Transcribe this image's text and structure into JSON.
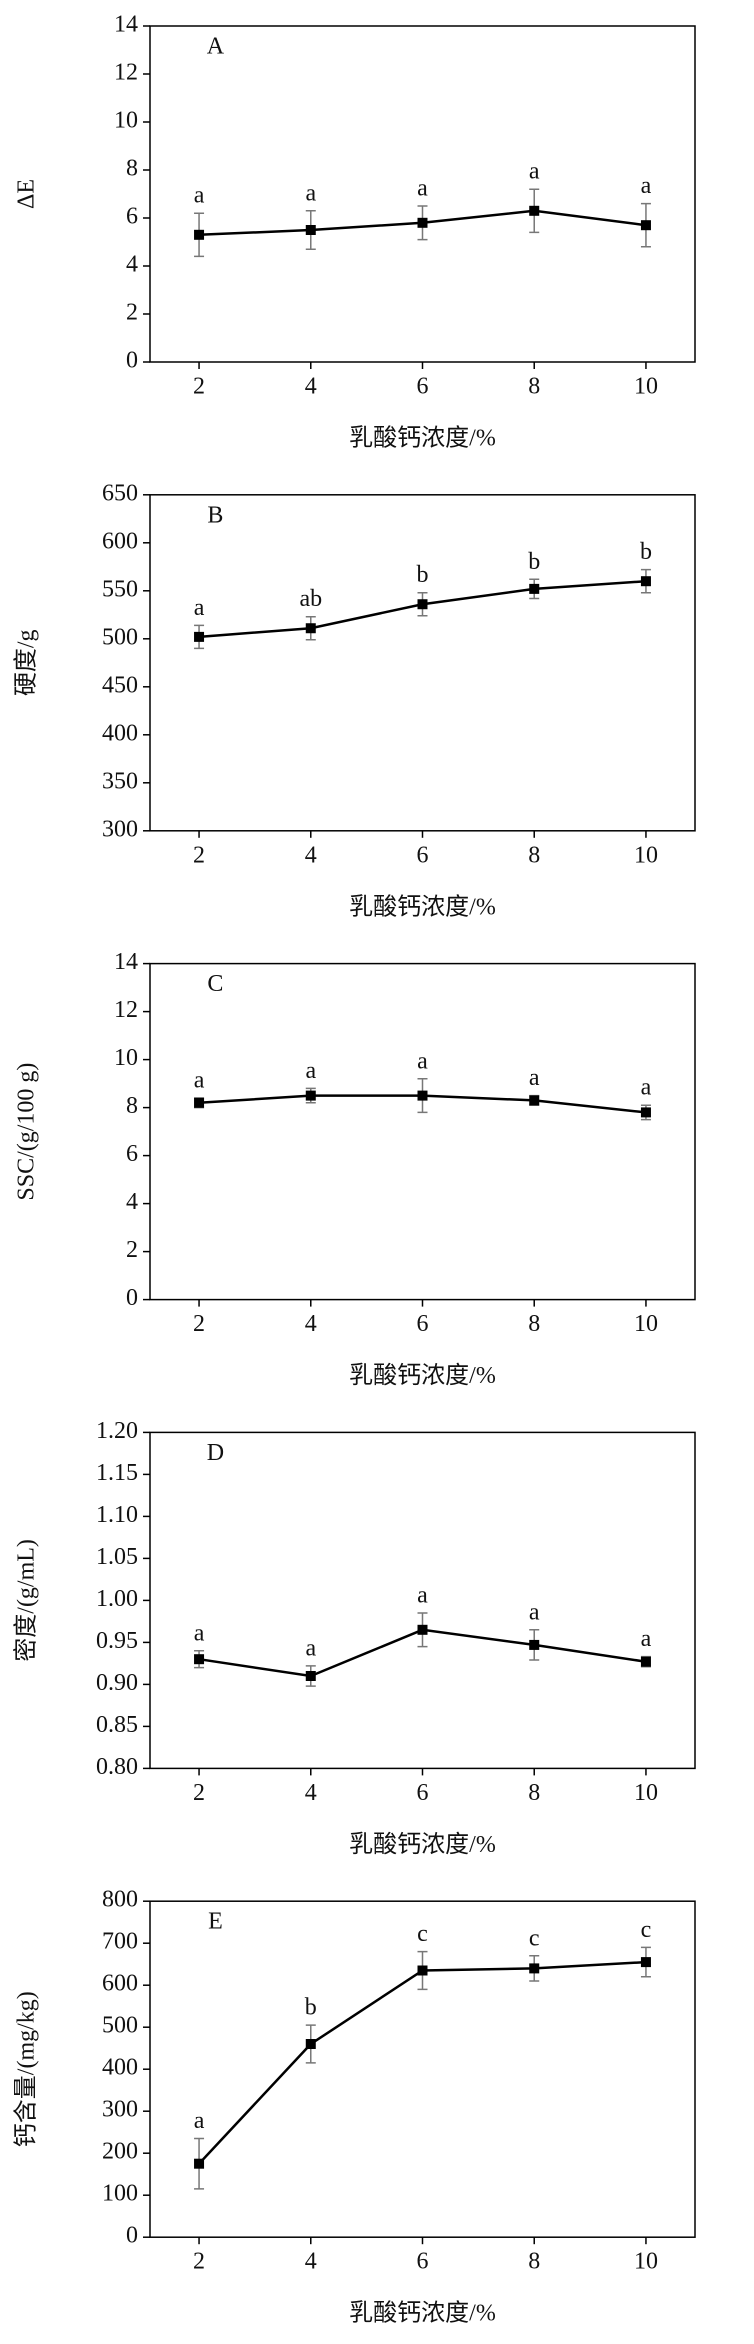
{
  "chart_data": [
    {
      "type": "line",
      "title": "A",
      "y_label": "ΔE",
      "x_label": "乳酸钙浓度/%",
      "categories": [
        "2",
        "4",
        "6",
        "8",
        "10"
      ],
      "values": [
        5.3,
        5.5,
        5.8,
        6.3,
        5.7
      ],
      "errors": [
        0.9,
        0.8,
        0.7,
        0.9,
        0.9
      ],
      "annotations": [
        "a",
        "a",
        "a",
        "a",
        "a"
      ],
      "color": "#000000",
      "ylim": [
        0,
        14
      ],
      "yticks": [
        0,
        2,
        4,
        6,
        8,
        10,
        12,
        14
      ]
    },
    {
      "type": "line",
      "title": "B",
      "y_label": "硬度/g",
      "x_label": "乳酸钙浓度/%",
      "categories": [
        "2",
        "4",
        "6",
        "8",
        "10"
      ],
      "values": [
        502,
        511,
        536,
        552,
        560
      ],
      "errors": [
        12,
        12,
        12,
        10,
        12
      ],
      "annotations": [
        "a",
        "ab",
        "b",
        "b",
        "b"
      ],
      "color": "#000000",
      "ylim": [
        300,
        650
      ],
      "yticks": [
        300,
        350,
        400,
        450,
        500,
        550,
        600,
        650
      ]
    },
    {
      "type": "line",
      "title": "C",
      "y_label": "SSC/(g/100 g)",
      "x_label": "乳酸钙浓度/%",
      "categories": [
        "2",
        "4",
        "6",
        "8",
        "10"
      ],
      "values": [
        8.2,
        8.5,
        8.5,
        8.3,
        7.8
      ],
      "errors": [
        0.2,
        0.3,
        0.7,
        0.2,
        0.3
      ],
      "annotations": [
        "a",
        "a",
        "a",
        "a",
        "a"
      ],
      "color": "#000000",
      "ylim": [
        0,
        14
      ],
      "yticks": [
        0,
        2,
        4,
        6,
        8,
        10,
        12,
        14
      ]
    },
    {
      "type": "line",
      "title": "D",
      "y_label": "密度/(g/mL)",
      "x_label": "乳酸钙浓度/%",
      "categories": [
        "2",
        "4",
        "6",
        "8",
        "10"
      ],
      "values": [
        0.93,
        0.91,
        0.965,
        0.947,
        0.927
      ],
      "errors": [
        0.01,
        0.012,
        0.02,
        0.018,
        0.006
      ],
      "annotations": [
        "a",
        "a",
        "a",
        "a",
        "a"
      ],
      "color": "#000000",
      "ylim": [
        0.8,
        1.2
      ],
      "yticks": [
        {
          "value": 0.8,
          "label": "0.80"
        },
        0.85,
        {
          "value": 0.9,
          "label": "0.90"
        },
        0.95,
        {
          "value": 1.0,
          "label": "1.00"
        },
        1.05,
        {
          "value": 1.1,
          "label": "1.10"
        },
        1.15,
        {
          "value": 1.2,
          "label": "1.20"
        }
      ]
    },
    {
      "type": "line",
      "title": "E",
      "y_label": "钙含量/(mg/kg)",
      "x_label": "乳酸钙浓度/%",
      "categories": [
        "2",
        "4",
        "6",
        "8",
        "10"
      ],
      "values": [
        175,
        460,
        635,
        640,
        655
      ],
      "errors": [
        60,
        45,
        45,
        30,
        35
      ],
      "annotations": [
        "a",
        "b",
        "c",
        "c",
        "c"
      ],
      "color": "#000000",
      "ylim": [
        0,
        800
      ],
      "yticks": [
        0,
        100,
        200,
        300,
        400,
        500,
        600,
        700,
        800
      ]
    }
  ]
}
